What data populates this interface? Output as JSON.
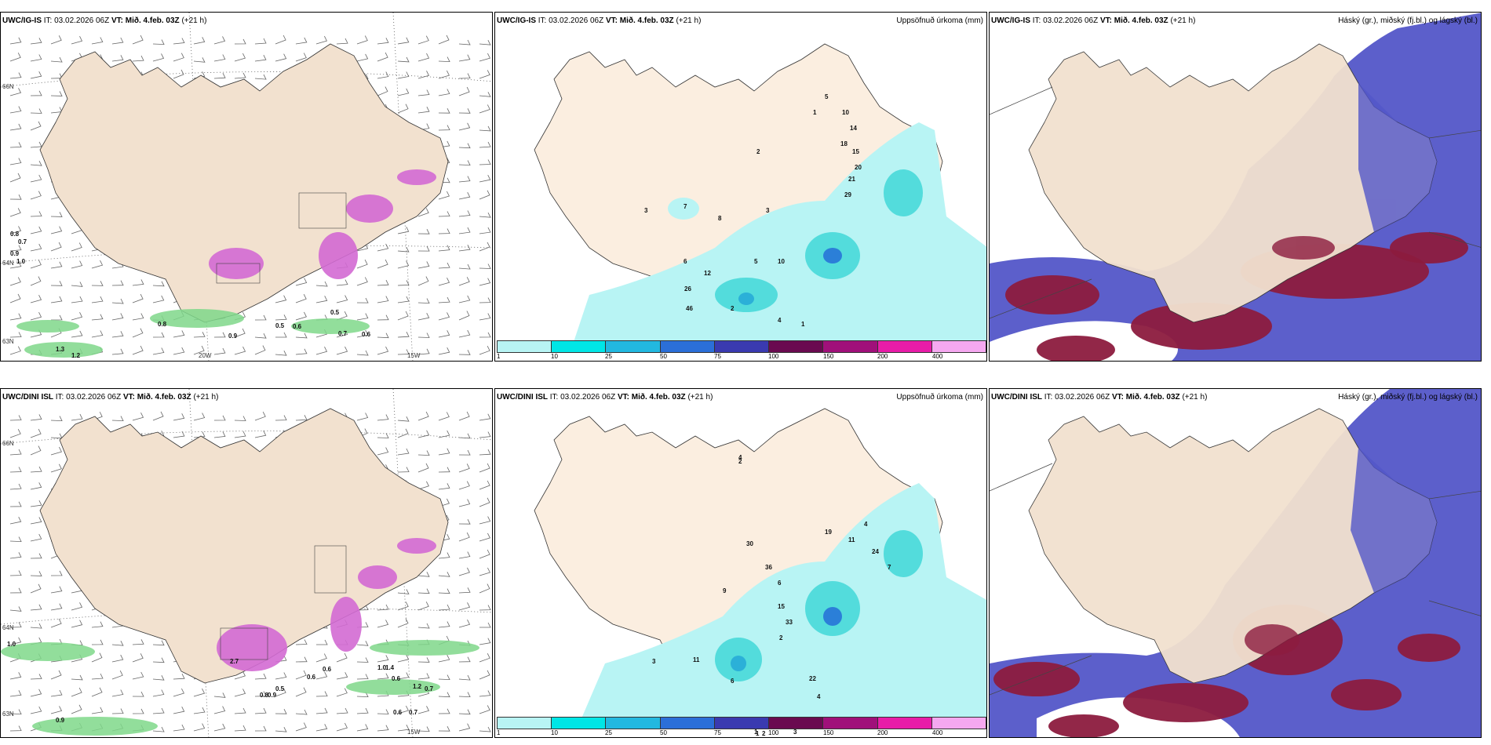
{
  "colors": {
    "land": "#f2e1cf",
    "land_center": "#fbeee0",
    "precip_light": "#b8f4f4",
    "precip_mid": "#53dcdc",
    "snow_pink": "#d36ad3",
    "rain_green": "#7fd88a",
    "cloud_high": "#5356c8",
    "cloud_low": "#8c1b3e"
  },
  "panels": [
    {
      "model": "UWC/IG-IS",
      "init": "IT: 03.02.2026 06Z",
      "valid": "VT: Mið. 4.feb. 03Z",
      "lead": "(+21 h)",
      "title_right": "",
      "lat_labels": [
        "66N",
        "64N",
        "63N"
      ],
      "lon_labels": [
        "20W",
        "15W"
      ],
      "numbers": [
        "0.8",
        "0.7",
        "0.9",
        "1.0",
        "0.8",
        "0.9",
        "0.5",
        "0.6",
        "0.5",
        "0.7",
        "0.6",
        "1.3",
        "1.2"
      ]
    },
    {
      "model": "UWC/IG-IS",
      "init": "IT: 03.02.2026 06Z",
      "valid": "VT: Mið. 4.feb. 03Z",
      "lead": "(+21 h)",
      "title_right": "Uppsöfnuð úrkoma (mm)",
      "numbers": [
        "5",
        "1",
        "10",
        "14",
        "18",
        "15",
        "20",
        "21",
        "29",
        "2",
        "8",
        "7",
        "3",
        "6",
        "12",
        "26",
        "46",
        "2",
        "4",
        "1",
        "10",
        "5",
        "3"
      ],
      "colorbar_ticks": [
        "1",
        "10",
        "25",
        "50",
        "75",
        "100",
        "150",
        "200",
        "400"
      ]
    },
    {
      "model": "UWC/IG-IS",
      "init": "IT: 03.02.2026 06Z",
      "valid": "VT: Mið. 4.feb. 03Z",
      "lead": "(+21 h)",
      "title_right": "Háský (gr.), miðský (fj.bl.) og lágský (bl.)"
    },
    {
      "model": "UWC/DINI ISL",
      "init": "IT: 03.02.2026 06Z",
      "valid": "VT: Mið. 4.feb. 03Z",
      "lead": "(+21 h)",
      "title_right": "",
      "lat_labels": [
        "66N",
        "64N",
        "63N"
      ],
      "lon_labels": [
        "15W"
      ],
      "numbers": [
        "1.0",
        "0.9",
        "0.5",
        "0.6",
        "0.8",
        "0.9",
        "0.6",
        "1.0",
        "1.4",
        "0.6",
        "1.2",
        "0.7",
        "0.6",
        "0.7",
        "2.7"
      ]
    },
    {
      "model": "UWC/DINI ISL",
      "init": "IT: 03.02.2026 06Z",
      "valid": "VT: Mið. 4.feb. 03Z",
      "lead": "(+21 h)",
      "title_right": "Uppsöfnuð úrkoma (mm)",
      "numbers": [
        "4",
        "2",
        "4",
        "11",
        "19",
        "24",
        "7",
        "30",
        "36",
        "6",
        "15",
        "33",
        "2",
        "3",
        "9",
        "11",
        "6",
        "22",
        "4",
        "3",
        "1",
        "2",
        "1"
      ],
      "colorbar_ticks": [
        "1",
        "10",
        "25",
        "50",
        "75",
        "100",
        "150",
        "200",
        "400"
      ]
    },
    {
      "model": "UWC/DINI ISL",
      "init": "IT: 03.02.2026 06Z",
      "valid": "VT: Mið. 4.feb. 03Z",
      "lead": "(+21 h)",
      "title_right": "Háský (gr.), miðský (fj.bl.) og lágský (bl.)"
    }
  ]
}
